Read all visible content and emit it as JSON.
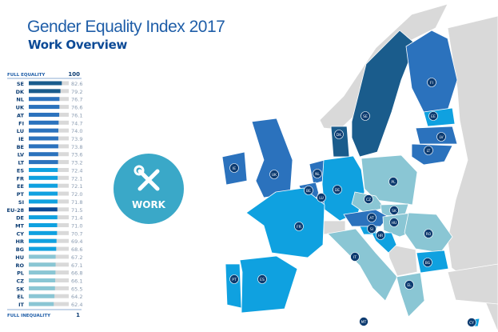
{
  "title": "Gender Equality Index 2017",
  "subtitle": "Work Overview",
  "domain_label": "WORK",
  "domain_icon": "wrench-pencil-icon",
  "colors": {
    "top": "#1a5c8c",
    "high": "#2b72bd",
    "mid": "#0fa1e0",
    "low": "#8ac6d4",
    "eu": "#0c4a96",
    "track": "#d9d9d9",
    "badge": "#0d3b70",
    "domain_circle": "#3aa8c8",
    "non_eu": "#d9d9d9"
  },
  "chart_data": {
    "type": "bar",
    "orientation": "horizontal",
    "scale_top_label": "FULL EQUALITY",
    "scale_top_value": "100",
    "scale_bottom_label": "FULL INEQUALITY",
    "scale_bottom_value": "1",
    "xlim": [
      0,
      100
    ],
    "categories": [
      "SE",
      "DK",
      "NL",
      "UK",
      "AT",
      "FI",
      "LU",
      "IE",
      "BE",
      "LV",
      "LT",
      "ES",
      "FR",
      "EE",
      "PT",
      "SI",
      "EU-28",
      "DE",
      "MT",
      "CY",
      "HR",
      "BG",
      "HU",
      "RO",
      "PL",
      "CZ",
      "SK",
      "EL",
      "IT"
    ],
    "values": [
      82.6,
      79.2,
      76.7,
      76.6,
      76.1,
      74.7,
      74.0,
      73.9,
      73.8,
      73.6,
      73.2,
      72.4,
      72.1,
      72.1,
      72.0,
      71.8,
      71.5,
      71.4,
      71.0,
      70.7,
      69.4,
      68.6,
      67.2,
      67.1,
      66.8,
      66.1,
      65.5,
      64.2,
      62.4
    ],
    "value_labels": [
      "82.6",
      "79.2",
      "76.7",
      "76.6",
      "76.1",
      "74.7",
      "74.0",
      "73.9",
      "73.8",
      "73.6",
      "73.2",
      "72.4",
      "72.1",
      "72.1",
      "72.0",
      "71.8",
      "71.5",
      "71.4",
      "71.0",
      "70.7",
      "69.4",
      "68.6",
      "67.2",
      "67.1",
      "66.8",
      "66.1",
      "65.5",
      "64.2",
      "62.4"
    ]
  },
  "map_labels": [
    "SE",
    "FI",
    "EE",
    "LV",
    "LT",
    "DK",
    "IE",
    "UK",
    "NL",
    "BE",
    "LU",
    "DE",
    "PL",
    "CZ",
    "SK",
    "AT",
    "HU",
    "SI",
    "HR",
    "RO",
    "FR",
    "IT",
    "BG",
    "PT",
    "ES",
    "EL",
    "MT",
    "CY"
  ]
}
